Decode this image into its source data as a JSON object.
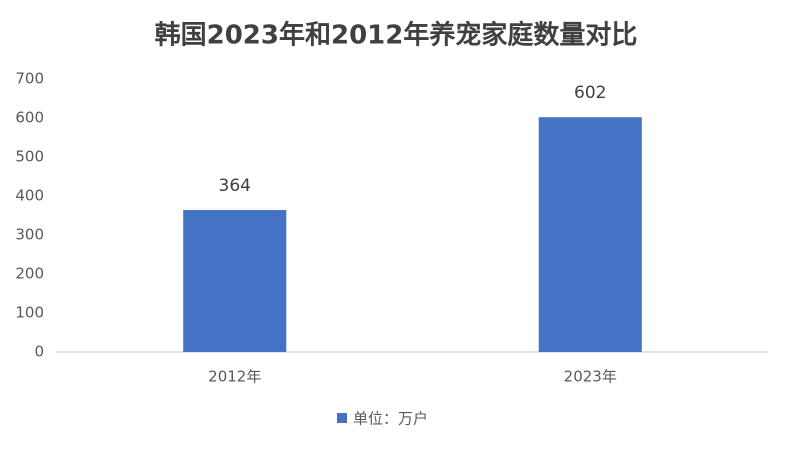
{
  "chart_data": {
    "type": "bar",
    "title": "韩国2023年和2012年养宠家庭数量对比",
    "categories": [
      "2012年",
      "2023年"
    ],
    "series": [
      {
        "name": "单位：万户",
        "color": "#4472c4",
        "values": [
          364,
          602
        ]
      }
    ],
    "ylim": [
      0,
      700
    ],
    "yticks": [
      0,
      100,
      200,
      300,
      400,
      500,
      600,
      700
    ],
    "grid": false
  }
}
